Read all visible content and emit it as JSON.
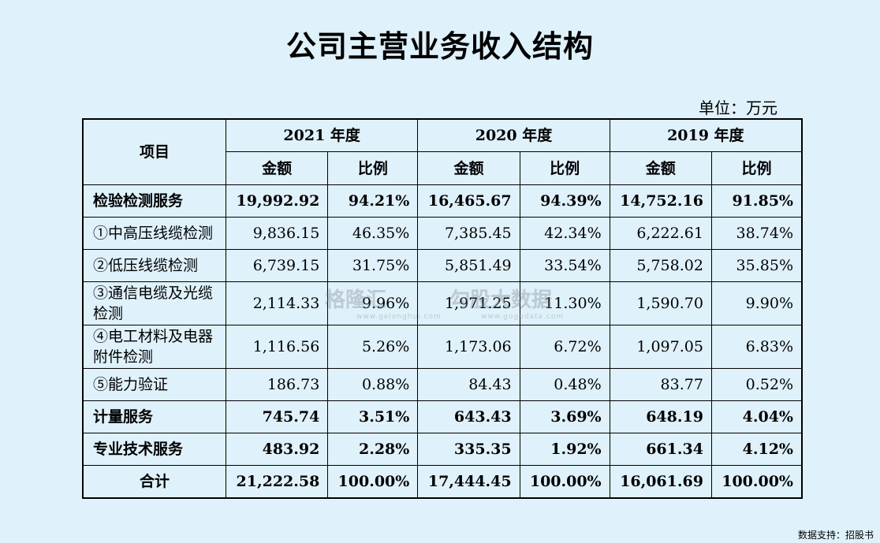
{
  "title": "公司主营业务收入结构",
  "unit": "单位：万元",
  "header": {
    "item": "项目",
    "years": [
      "2021 年度",
      "2020 年度",
      "2019 年度"
    ],
    "amount": "金额",
    "ratio": "比例"
  },
  "rows": [
    {
      "name": "检验检测服务",
      "bold": true,
      "v": [
        "19,992.92",
        "94.21%",
        "16,465.67",
        "94.39%",
        "14,752.16",
        "91.85%"
      ]
    },
    {
      "name": "①中高压线缆检测",
      "bold": false,
      "v": [
        "9,836.15",
        "46.35%",
        "7,385.45",
        "42.34%",
        "6,222.61",
        "38.74%"
      ]
    },
    {
      "name": "②低压线缆检测",
      "bold": false,
      "v": [
        "6,739.15",
        "31.75%",
        "5,851.49",
        "33.54%",
        "5,758.02",
        "35.85%"
      ]
    },
    {
      "name": "③通信电缆及光缆检测",
      "bold": false,
      "v": [
        "2,114.33",
        "9.96%",
        "1,971.25",
        "11.30%",
        "1,590.70",
        "9.90%"
      ]
    },
    {
      "name": "④电工材料及电器附件检测",
      "bold": false,
      "v": [
        "1,116.56",
        "5.26%",
        "1,173.06",
        "6.72%",
        "1,097.05",
        "6.83%"
      ]
    },
    {
      "name": "⑤能力验证",
      "bold": false,
      "v": [
        "186.73",
        "0.88%",
        "84.43",
        "0.48%",
        "83.77",
        "0.52%"
      ]
    },
    {
      "name": "计量服务",
      "bold": true,
      "v": [
        "745.74",
        "3.51%",
        "643.43",
        "3.69%",
        "648.19",
        "4.04%"
      ]
    },
    {
      "name": "专业技术服务",
      "bold": true,
      "v": [
        "483.92",
        "2.28%",
        "335.35",
        "1.92%",
        "661.34",
        "4.12%"
      ]
    },
    {
      "name": "合计",
      "bold": true,
      "v": [
        "21,222.58",
        "100.00%",
        "17,444.45",
        "100.00%",
        "16,061.69",
        "100.00%"
      ]
    }
  ],
  "watermark": {
    "left": "格隆汇",
    "left_sub": "www.gelonghui.com",
    "right": "勾股大数据",
    "right_sub": "www.gogudata.com"
  },
  "source": "数据支持：招股书"
}
